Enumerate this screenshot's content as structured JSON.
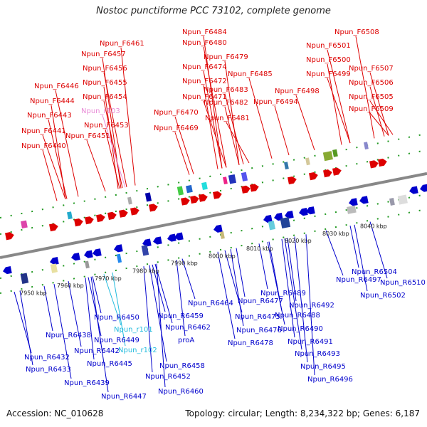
{
  "title": "Nostoc punctiforme PCC 73102, complete genome",
  "footer": {
    "accession": "Accession: NC_010628",
    "summary": "Topology: circular; Length: 8,234,322 bp; Genes: 6,187"
  },
  "colors": {
    "forward": "#dd0000",
    "reverse": "#0000cc",
    "rna_pink": "#e88ad6",
    "rna_cyan": "#22bbdd",
    "backbone": "#888888",
    "tick": "#229922"
  },
  "kbp_labels": [
    "7950 kbp",
    "7960 kbp",
    "7970 kbp",
    "7980 kbp",
    "7990 kbp",
    "8000 kbp",
    "8010 kbp",
    "8020 kbp",
    "8030 kbp",
    "8040 kbp"
  ],
  "forward_labels": [
    "Npun_F6461",
    "Npun_F6457",
    "Npun_F6456",
    "Npun_F6455",
    "Npun_F6454",
    "Npun_r103",
    "Npun_F6453",
    "Npun_F6451",
    "Npun_F6446",
    "Npun_F6444",
    "Npun_F6443",
    "Npun_F6441",
    "Npun_F6440",
    "Npun_F6484",
    "Npun_F6480",
    "Npun_F6479",
    "Npun_F6474",
    "Npun_F6485",
    "Npun_F6472",
    "Npun_F6483",
    "Npun_F6471",
    "Npun_F6482",
    "Npun_F6470",
    "Npun_F6481",
    "Npun_F6469",
    "Npun_F6508",
    "Npun_F6501",
    "Npun_F6500",
    "Npun_F6507",
    "Npun_F6499",
    "Npun_F6506",
    "Npun_F6498",
    "Npun_F6505",
    "Npun_F6494",
    "Npun_F6509"
  ],
  "reverse_labels": [
    "Npun_R6432",
    "Npun_R6433",
    "Npun_R6438",
    "Npun_R6439",
    "Npun_R6442",
    "Npun_R6445",
    "Npun_R6447",
    "Npun_R6449",
    "Npun_R6450",
    "Npun_r101",
    "Npun_r102",
    "Npun_R6452",
    "Npun_R6458",
    "Npun_R6459",
    "Npun_R6460",
    "Npun_R6462",
    "Npun_R6464",
    "proA",
    "Npun_R6475",
    "Npun_R6476",
    "Npun_R6477",
    "Npun_R6478",
    "Npun_R6488",
    "Npun_R6489",
    "Npun_R6490",
    "Npun_R6491",
    "Npun_R6492",
    "Npun_R6493",
    "Npun_R6495",
    "Npun_R6496",
    "Npun_R6497",
    "Npun_R6502",
    "Npun_R6504",
    "Npun_R6510"
  ]
}
